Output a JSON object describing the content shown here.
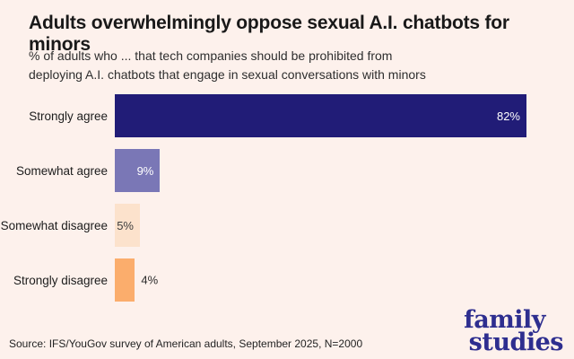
{
  "page": {
    "background_color": "#fdf1ec",
    "source_note": "Source: IFS/YouGov survey of American adults, September 2025, N=2000",
    "logo": {
      "line1": "family",
      "line2": "studies",
      "color": "#2e2e8f"
    }
  },
  "chart_data": {
    "type": "bar",
    "orientation": "horizontal",
    "title": "Adults overwhelmingly oppose sexual A.I. chatbots for minors",
    "subtitle_lines": [
      "% of adults who ... that tech companies should be prohibited from",
      "deploying A.I. chatbots that engage in sexual conversations with minors"
    ],
    "categories": [
      "Strongly agree",
      "Somewhat agree",
      "Somewhat disagree",
      "Strongly disagree"
    ],
    "values": [
      82,
      9,
      5,
      4
    ],
    "value_labels": [
      "82%",
      "9%",
      "5%",
      "4%"
    ],
    "bar_colors": [
      "#211c77",
      "#7a77b6",
      "#fce2cc",
      "#fbad6c"
    ],
    "value_label_colors": [
      "#ffffff",
      "#ffffff",
      "#3d3d3d",
      "#2a2a2a"
    ],
    "value_label_positions": [
      "inside",
      "inside",
      "inside",
      "outside"
    ],
    "xlim": [
      0,
      100
    ],
    "grid": false,
    "legend": false,
    "xlabel": "",
    "ylabel": ""
  }
}
